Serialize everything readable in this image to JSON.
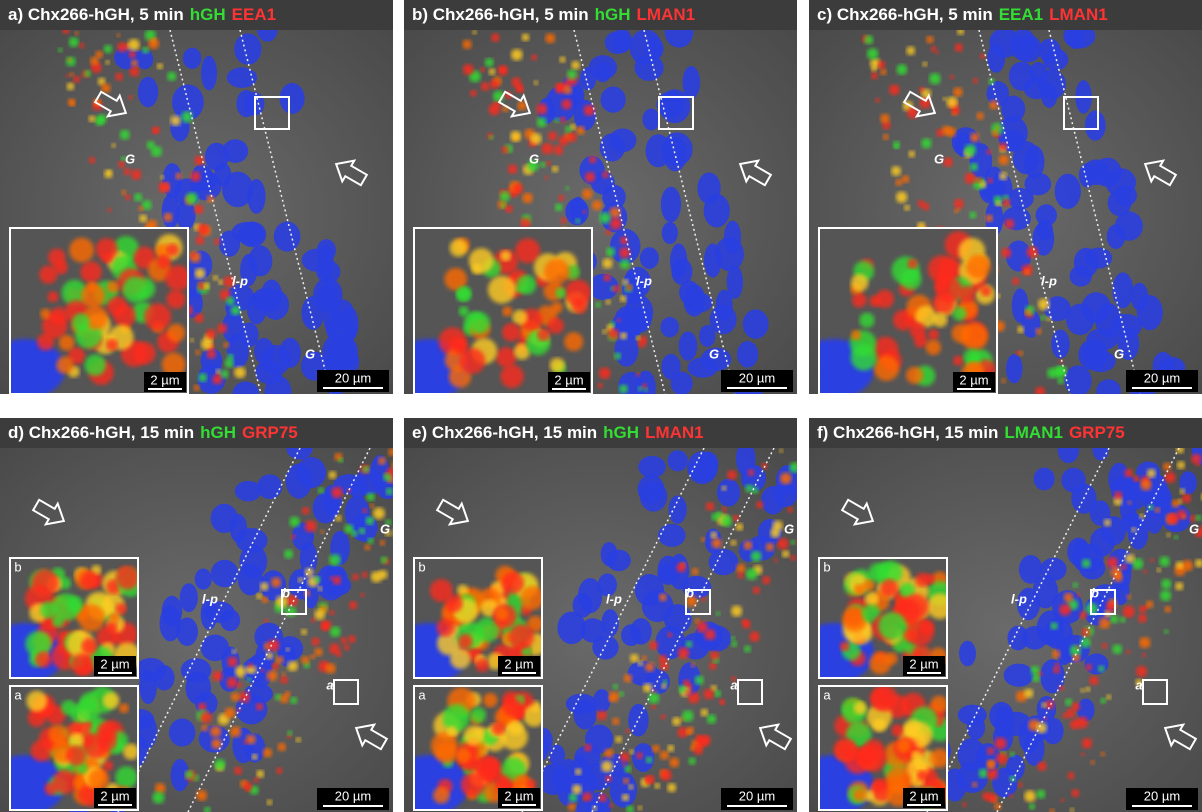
{
  "panels": [
    {
      "title": [
        {
          "text": "a) Chx266-hGH, 5 min",
          "color": "#ffffff"
        },
        {
          "text": "hGH",
          "color": "#33dd33"
        },
        {
          "text": "EEA1",
          "color": "#ff3333"
        }
      ],
      "scale_bar": "20 µm",
      "labels": [
        "G",
        "G",
        "l-p"
      ],
      "insets": [
        {
          "scale_bar": "2 µm"
        }
      ]
    },
    {
      "title": [
        {
          "text": "b) Chx266-hGH, 5 min",
          "color": "#ffffff"
        },
        {
          "text": "hGH",
          "color": "#33dd33"
        },
        {
          "text": "LMAN1",
          "color": "#ff3333"
        }
      ],
      "scale_bar": "20 µm",
      "labels": [
        "G",
        "G",
        "l-p"
      ],
      "insets": [
        {
          "scale_bar": "2 µm"
        }
      ]
    },
    {
      "title": [
        {
          "text": "c) Chx266-hGH, 5 min",
          "color": "#ffffff"
        },
        {
          "text": "EEA1",
          "color": "#33dd33"
        },
        {
          "text": "LMAN1",
          "color": "#ff3333"
        }
      ],
      "scale_bar": "20 µm",
      "labels": [
        "G",
        "G",
        "l-p"
      ],
      "insets": [
        {
          "scale_bar": "2 µm"
        }
      ]
    },
    {
      "title": [
        {
          "text": "d) Chx266-hGH, 15 min",
          "color": "#ffffff"
        },
        {
          "text": "hGH",
          "color": "#33dd33"
        },
        {
          "text": "GRP75",
          "color": "#ff3333"
        }
      ],
      "scale_bar": "20 µm",
      "labels": [
        "G",
        "l-p",
        "b",
        "a"
      ],
      "insets": [
        {
          "label": "b",
          "scale_bar": "2 µm"
        },
        {
          "label": "a",
          "scale_bar": "2 µm"
        }
      ]
    },
    {
      "title": [
        {
          "text": "e) Chx266-hGH, 15 min",
          "color": "#ffffff"
        },
        {
          "text": "hGH",
          "color": "#33dd33"
        },
        {
          "text": "LMAN1",
          "color": "#ff3333"
        }
      ],
      "scale_bar": "20 µm",
      "labels": [
        "G",
        "l-p",
        "b",
        "a"
      ],
      "insets": [
        {
          "label": "b",
          "scale_bar": "2 µm"
        },
        {
          "label": "a",
          "scale_bar": "2 µm"
        }
      ]
    },
    {
      "title": [
        {
          "text": "f) Chx266-hGH, 15 min",
          "color": "#ffffff"
        },
        {
          "text": "LMAN1",
          "color": "#33dd33"
        },
        {
          "text": "GRP75",
          "color": "#ff3333"
        }
      ],
      "scale_bar": "20 µm",
      "labels": [
        "G",
        "l-p",
        "b",
        "a"
      ],
      "insets": [
        {
          "label": "b",
          "scale_bar": "2 µm"
        },
        {
          "label": "a",
          "scale_bar": "2 µm"
        }
      ]
    }
  ]
}
